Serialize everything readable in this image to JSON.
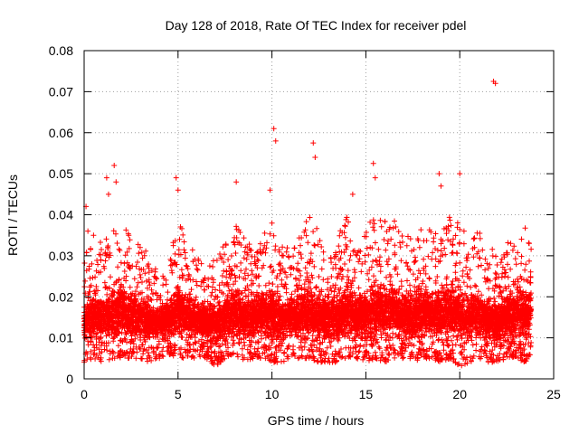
{
  "chart_data": {
    "type": "scatter",
    "title": "Day 128 of 2018, Rate Of TEC Index for receiver pdel",
    "xlabel": "GPS time / hours",
    "ylabel": "ROTI / TECUs",
    "xlim": [
      0,
      25
    ],
    "ylim": [
      0,
      0.08
    ],
    "x_ticks": [
      0,
      5,
      10,
      15,
      20,
      25
    ],
    "x_tick_labels": [
      "0",
      "5",
      "10",
      "15",
      "20",
      "25"
    ],
    "y_ticks": [
      0,
      0.01,
      0.02,
      0.03,
      0.04,
      0.05,
      0.06,
      0.07,
      0.08
    ],
    "y_tick_labels": [
      "0",
      "0.01",
      "0.02",
      "0.03",
      "0.04",
      "0.05",
      "0.06",
      "0.07",
      "0.08"
    ],
    "grid": true,
    "marker": "+",
    "marker_color": "#ff0000",
    "series": [
      {
        "name": "ROTI",
        "x": [
          0.1,
          0.2,
          0.5,
          1.2,
          1.3,
          1.6,
          1.7,
          4.9,
          5.0,
          8.1,
          9.9,
          10.1,
          10.2,
          12.2,
          12.3,
          14.3,
          15.4,
          15.5,
          18.9,
          19.0,
          20.0,
          21.8,
          21.9
        ],
        "y": [
          0.042,
          0.036,
          0.035,
          0.049,
          0.045,
          0.052,
          0.048,
          0.049,
          0.046,
          0.048,
          0.046,
          0.061,
          0.058,
          0.0575,
          0.054,
          0.045,
          0.0525,
          0.049,
          0.05,
          0.047,
          0.05,
          0.0725,
          0.072
        ]
      }
    ],
    "x_envelope": [
      0.0,
      0.5,
      1.0,
      1.5,
      2.0,
      2.5,
      3.0,
      3.5,
      4.0,
      4.5,
      5.0,
      5.5,
      6.0,
      6.5,
      7.0,
      7.5,
      8.0,
      8.5,
      9.0,
      9.5,
      10.0,
      10.5,
      11.0,
      11.5,
      12.0,
      12.5,
      13.0,
      13.5,
      14.0,
      14.5,
      15.0,
      15.5,
      16.0,
      16.5,
      17.0,
      17.5,
      18.0,
      18.5,
      19.0,
      19.5,
      20.0,
      20.5,
      21.0,
      21.5,
      22.0,
      22.5,
      23.0,
      23.5,
      23.8
    ],
    "y_low": [
      0.004,
      0.005,
      0.004,
      0.005,
      0.005,
      0.005,
      0.005,
      0.004,
      0.005,
      0.006,
      0.005,
      0.005,
      0.005,
      0.005,
      0.003,
      0.005,
      0.005,
      0.004,
      0.005,
      0.005,
      0.004,
      0.004,
      0.005,
      0.005,
      0.005,
      0.004,
      0.004,
      0.004,
      0.005,
      0.005,
      0.004,
      0.005,
      0.004,
      0.005,
      0.005,
      0.004,
      0.005,
      0.005,
      0.004,
      0.005,
      0.003,
      0.004,
      0.005,
      0.004,
      0.004,
      0.005,
      0.005,
      0.004,
      0.006
    ],
    "y_high": [
      0.03,
      0.034,
      0.035,
      0.038,
      0.04,
      0.035,
      0.034,
      0.03,
      0.026,
      0.028,
      0.04,
      0.034,
      0.03,
      0.027,
      0.03,
      0.033,
      0.038,
      0.035,
      0.033,
      0.035,
      0.038,
      0.035,
      0.032,
      0.036,
      0.04,
      0.036,
      0.034,
      0.035,
      0.04,
      0.033,
      0.038,
      0.04,
      0.04,
      0.04,
      0.035,
      0.035,
      0.038,
      0.036,
      0.038,
      0.04,
      0.038,
      0.035,
      0.036,
      0.033,
      0.03,
      0.033,
      0.035,
      0.038,
      0.036
    ]
  }
}
